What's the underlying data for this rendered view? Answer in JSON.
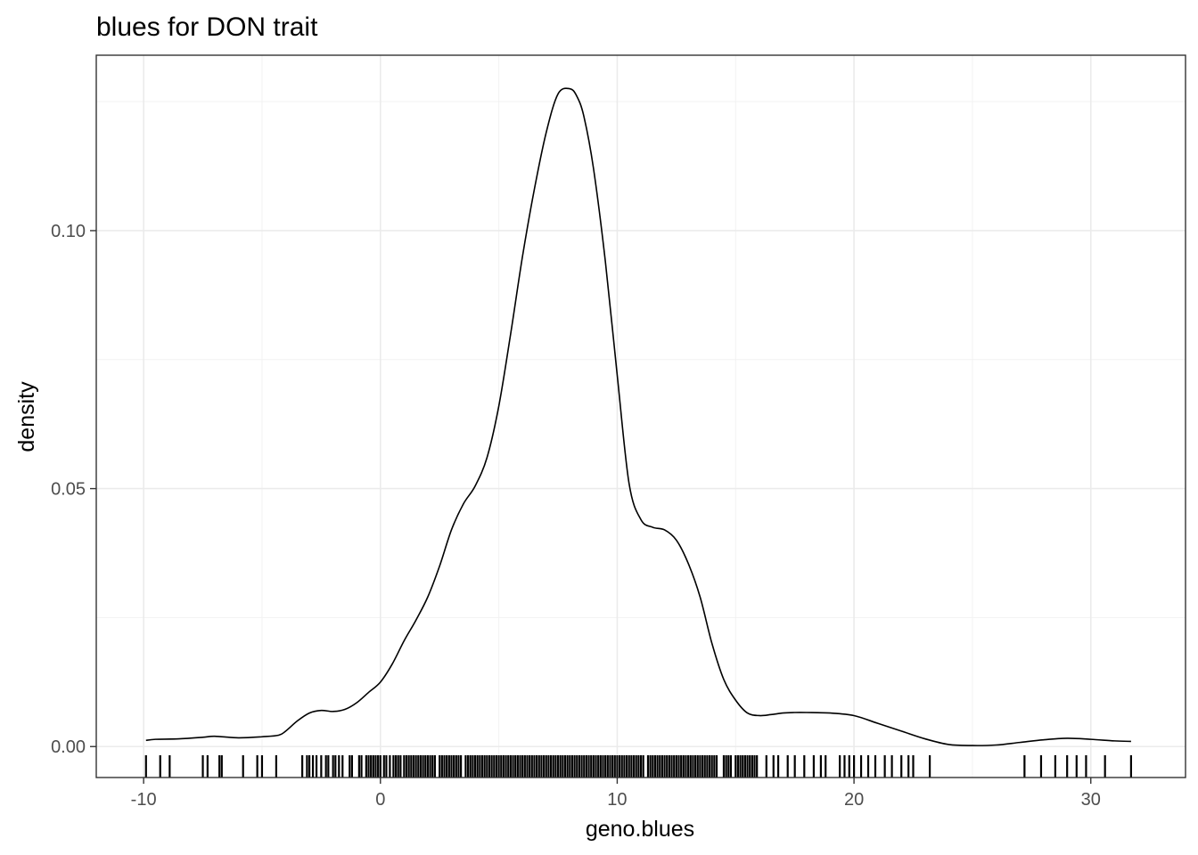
{
  "chart_data": {
    "type": "line",
    "title": "blues for DON trait",
    "xlabel": "geno.blues",
    "ylabel": "density",
    "xlim": [
      -12,
      34
    ],
    "ylim": [
      -0.006,
      0.134
    ],
    "x_ticks": [
      -10,
      0,
      10,
      20,
      30
    ],
    "x_tick_labels": [
      "-10",
      "0",
      "10",
      "20",
      "30"
    ],
    "y_ticks": [
      0.0,
      0.05,
      0.1
    ],
    "y_tick_labels": [
      "0.00",
      "0.05",
      "0.10"
    ],
    "grid": true,
    "legend": "none",
    "series": [
      {
        "x": [
          -9.9,
          -9.5,
          -8.5,
          -7.5,
          -7.0,
          -6.0,
          -5.0,
          -4.3,
          -4.0,
          -3.5,
          -3.0,
          -2.5,
          -2.0,
          -1.5,
          -1.0,
          -0.5,
          0.0,
          0.5,
          1.0,
          1.5,
          2.0,
          2.5,
          3.0,
          3.5,
          4.0,
          4.5,
          5.0,
          5.5,
          6.0,
          6.5,
          7.0,
          7.5,
          8.0,
          8.3,
          8.6,
          9.0,
          9.5,
          10.0,
          10.5,
          11.0,
          11.5,
          12.0,
          12.5,
          13.0,
          13.5,
          14.0,
          14.5,
          15.0,
          15.5,
          16.0,
          16.5,
          17.0,
          17.5,
          18.0,
          19.0,
          20.0,
          21.0,
          22.0,
          23.0,
          24.0,
          25.0,
          26.0,
          27.0,
          28.0,
          29.0,
          30.0,
          31.0,
          31.7
        ],
        "y": [
          0.0012,
          0.0014,
          0.0015,
          0.0018,
          0.002,
          0.0017,
          0.0019,
          0.0022,
          0.003,
          0.005,
          0.0065,
          0.007,
          0.0068,
          0.0072,
          0.0085,
          0.0105,
          0.0125,
          0.016,
          0.0205,
          0.0245,
          0.029,
          0.035,
          0.042,
          0.047,
          0.0505,
          0.056,
          0.066,
          0.08,
          0.095,
          0.108,
          0.119,
          0.1265,
          0.1275,
          0.126,
          0.122,
          0.112,
          0.094,
          0.072,
          0.051,
          0.044,
          0.0425,
          0.042,
          0.04,
          0.0355,
          0.029,
          0.02,
          0.013,
          0.009,
          0.0065,
          0.006,
          0.0062,
          0.0065,
          0.0066,
          0.0066,
          0.0065,
          0.006,
          0.0045,
          0.003,
          0.0015,
          0.0004,
          0.0002,
          0.0003,
          0.0008,
          0.0013,
          0.0016,
          0.0014,
          0.0011,
          0.001
        ]
      }
    ],
    "rug": [
      -9.9,
      -9.3,
      -8.9,
      -7.5,
      -7.3,
      -6.8,
      -6.7,
      -5.8,
      -5.2,
      -5.0,
      -4.4,
      -3.3,
      -3.1,
      -3.0,
      -2.85,
      -2.7,
      -2.5,
      -2.3,
      -2.2,
      -2.0,
      -1.9,
      -1.75,
      -1.6,
      -1.3,
      -1.2,
      -0.9,
      -0.8,
      -0.6,
      -0.5,
      -0.4,
      -0.3,
      -0.2,
      -0.1,
      0.0,
      0.15,
      0.25,
      0.4,
      0.55,
      0.65,
      0.75,
      0.85,
      1.0,
      1.1,
      1.2,
      1.3,
      1.4,
      1.5,
      1.6,
      1.7,
      1.8,
      1.9,
      2.0,
      2.1,
      2.2,
      2.3,
      2.5,
      2.6,
      2.7,
      2.8,
      2.9,
      3.0,
      3.1,
      3.2,
      3.3,
      3.4,
      3.6,
      3.7,
      3.8,
      3.9,
      4.0,
      4.1,
      4.2,
      4.3,
      4.4,
      4.5,
      4.6,
      4.7,
      4.8,
      4.9,
      5.0,
      5.1,
      5.2,
      5.3,
      5.4,
      5.5,
      5.6,
      5.7,
      5.8,
      5.9,
      6.0,
      6.1,
      6.2,
      6.3,
      6.4,
      6.5,
      6.6,
      6.7,
      6.8,
      6.9,
      7.0,
      7.1,
      7.2,
      7.3,
      7.4,
      7.5,
      7.6,
      7.7,
      7.8,
      7.9,
      8.0,
      8.1,
      8.2,
      8.3,
      8.4,
      8.5,
      8.6,
      8.7,
      8.8,
      8.9,
      9.0,
      9.1,
      9.2,
      9.3,
      9.4,
      9.5,
      9.6,
      9.7,
      9.8,
      9.9,
      10.0,
      10.1,
      10.2,
      10.3,
      10.4,
      10.5,
      10.6,
      10.7,
      10.8,
      10.9,
      11.0,
      11.1,
      11.3,
      11.4,
      11.5,
      11.6,
      11.7,
      11.8,
      11.9,
      12.0,
      12.1,
      12.2,
      12.3,
      12.4,
      12.5,
      12.6,
      12.7,
      12.8,
      12.9,
      13.0,
      13.1,
      13.2,
      13.3,
      13.4,
      13.5,
      13.6,
      13.7,
      13.8,
      13.9,
      14.0,
      14.1,
      14.2,
      14.5,
      14.6,
      14.7,
      14.8,
      15.0,
      15.1,
      15.2,
      15.3,
      15.4,
      15.5,
      15.6,
      15.7,
      15.8,
      15.9,
      16.3,
      16.6,
      16.8,
      17.2,
      17.5,
      17.9,
      18.3,
      18.6,
      18.8,
      19.4,
      19.6,
      19.8,
      20.0,
      20.3,
      20.6,
      20.9,
      21.3,
      21.6,
      22.0,
      22.3,
      22.5,
      23.2,
      27.2,
      27.9,
      28.5,
      29.0,
      29.4,
      29.8,
      30.6,
      31.7
    ]
  }
}
